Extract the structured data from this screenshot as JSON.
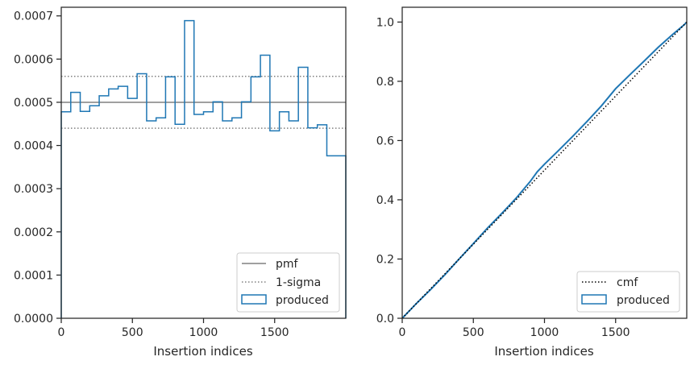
{
  "chart_data": [
    {
      "type": "histogram",
      "xlabel": "Insertion indices",
      "ylabel": "",
      "xlim": [
        0,
        2000
      ],
      "ylim": [
        0,
        0.00072
      ],
      "xticks": [
        0,
        500,
        1000,
        1500
      ],
      "xtick_labels": [
        "0",
        "500",
        "1000",
        "1500"
      ],
      "yticks": [
        0,
        0.0001,
        0.0002,
        0.0003,
        0.0004,
        0.0005,
        0.0006,
        0.0007
      ],
      "ytick_labels": [
        "0.0000",
        "0.0001",
        "0.0002",
        "0.0003",
        "0.0004",
        "0.0005",
        "0.0006",
        "0.0007"
      ],
      "grid": false,
      "legend_position": "lower right",
      "pmf": {
        "name": "pmf",
        "y": 0.0005,
        "color": "#808080",
        "style": "solid"
      },
      "sigma": {
        "name": "1-sigma",
        "lower": 0.00044,
        "upper": 0.00056,
        "color": "#808080",
        "style": "dotted"
      },
      "histogram": {
        "name": "produced",
        "color": "#1f77b4",
        "bin_edges": [
          0,
          66.7,
          133.3,
          200,
          266.7,
          333.3,
          400,
          466.7,
          533.3,
          600,
          666.7,
          733.3,
          800,
          866.7,
          933.3,
          1000,
          1066.7,
          1133.3,
          1200,
          1266.7,
          1333.3,
          1400,
          1466.7,
          1533.3,
          1600,
          1666.7,
          1733.3,
          1800,
          1866.7,
          1933.3,
          2000
        ],
        "values": [
          0.000478,
          0.000523,
          0.000479,
          0.000492,
          0.000515,
          0.000531,
          0.000537,
          0.000509,
          0.000566,
          0.000457,
          0.000464,
          0.000559,
          0.000449,
          0.000689,
          0.000472,
          0.000478,
          0.000501,
          0.000457,
          0.000464,
          0.000501,
          0.000559,
          0.000609,
          0.000434,
          0.000478,
          0.000457,
          0.000581,
          0.000441,
          0.000448,
          0.000376,
          0.000376
        ]
      }
    },
    {
      "type": "line",
      "xlabel": "Insertion indices",
      "ylabel": "",
      "xlim": [
        0,
        2000
      ],
      "ylim": [
        0,
        1.05
      ],
      "xticks": [
        0,
        500,
        1000,
        1500
      ],
      "xtick_labels": [
        "0",
        "500",
        "1000",
        "1500"
      ],
      "yticks": [
        0,
        0.2,
        0.4,
        0.6,
        0.8,
        1.0
      ],
      "ytick_labels": [
        "0.0",
        "0.2",
        "0.4",
        "0.6",
        "0.8",
        "1.0"
      ],
      "grid": false,
      "legend_position": "lower right",
      "series": [
        {
          "name": "cmf",
          "style": "dotted",
          "color": "#000000",
          "x": [
            0,
            2000
          ],
          "y": [
            0,
            1.0
          ]
        },
        {
          "name": "produced",
          "style": "solid",
          "color": "#1f77b4",
          "x": [
            0,
            100,
            200,
            300,
            400,
            500,
            600,
            700,
            800,
            900,
            950,
            1000,
            1100,
            1200,
            1300,
            1400,
            1500,
            1600,
            1700,
            1800,
            1900,
            1980,
            2000
          ],
          "y": [
            0,
            0.05,
            0.097,
            0.147,
            0.2,
            0.252,
            0.305,
            0.354,
            0.405,
            0.462,
            0.495,
            0.52,
            0.567,
            0.615,
            0.665,
            0.717,
            0.775,
            0.822,
            0.868,
            0.915,
            0.958,
            0.99,
            1.0
          ]
        }
      ]
    }
  ]
}
